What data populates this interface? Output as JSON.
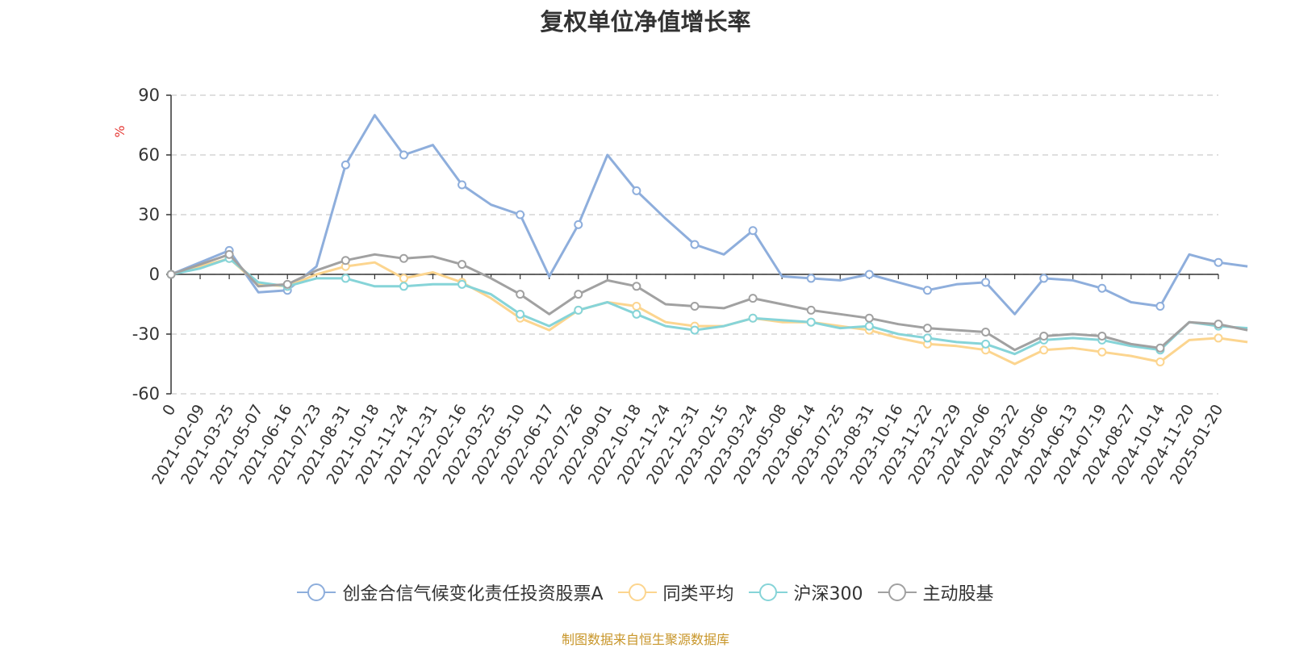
{
  "chart_data": {
    "type": "line",
    "title": "复权单位净值增长率",
    "ylabel": "%",
    "ylim": [
      -60,
      90
    ],
    "yticks": [
      "90",
      "60",
      "30",
      "0",
      "-30",
      "-60"
    ],
    "ytick_values": [
      90,
      60,
      30,
      0,
      -30,
      -60
    ],
    "grid": true,
    "legend_position": "bottom",
    "x_tick_labels": [
      "0",
      "2021-02-09",
      "2021-03-25",
      "2021-05-07",
      "2021-06-16",
      "2021-07-23",
      "2021-08-31",
      "2021-10-18",
      "2021-11-24",
      "2021-12-31",
      "2022-02-16",
      "2022-03-25",
      "2022-05-10",
      "2022-06-17",
      "2022-07-26",
      "2022-09-01",
      "2022-10-18",
      "2022-11-24",
      "2022-12-31",
      "2023-02-15",
      "2023-03-24",
      "2023-05-08",
      "2023-06-14",
      "2023-07-25",
      "2023-08-31",
      "2023-10-16",
      "2023-11-22",
      "2023-12-29",
      "2024-02-06",
      "2024-03-22",
      "2024-05-06",
      "2024-06-13",
      "2024-07-19",
      "2024-08-27",
      "2024-10-14",
      "2024-11-20",
      "2025-01-20"
    ],
    "series": [
      {
        "name": "创金合信气候变化责任投资股票A",
        "color": "#8eaedc",
        "values": [
          0,
          6,
          12,
          -9,
          -8,
          4,
          55,
          80,
          60,
          65,
          45,
          35,
          30,
          -1,
          25,
          60,
          42,
          28,
          15,
          10,
          22,
          -1,
          -2,
          -3,
          0,
          -4,
          -8,
          -5,
          -4,
          -20,
          -2,
          -3,
          -7,
          -14,
          -16,
          10,
          6,
          4
        ]
      },
      {
        "name": "同类平均",
        "color": "#fcd58f",
        "values": [
          0,
          4,
          8,
          -5,
          -6,
          0,
          4,
          6,
          -2,
          1,
          -4,
          -12,
          -22,
          -28,
          -18,
          -14,
          -16,
          -24,
          -26,
          -26,
          -22,
          -24,
          -24,
          -26,
          -28,
          -32,
          -35,
          -36,
          -38,
          -45,
          -38,
          -37,
          -39,
          -41,
          -44,
          -33,
          -32,
          -34
        ]
      },
      {
        "name": "沪深300",
        "color": "#86d4d8",
        "values": [
          0,
          3,
          8,
          -4,
          -6,
          -2,
          -2,
          -6,
          -6,
          -5,
          -5,
          -10,
          -20,
          -26,
          -18,
          -14,
          -20,
          -26,
          -28,
          -26,
          -22,
          -23,
          -24,
          -27,
          -26,
          -30,
          -32,
          -34,
          -35,
          -40,
          -33,
          -32,
          -33,
          -36,
          -38,
          -24,
          -26,
          -27
        ]
      },
      {
        "name": "主动股基",
        "color": "#a1a1a1",
        "values": [
          0,
          5,
          10,
          -6,
          -5,
          2,
          7,
          10,
          8,
          9,
          5,
          -2,
          -10,
          -20,
          -10,
          -3,
          -6,
          -15,
          -16,
          -17,
          -12,
          -15,
          -18,
          -20,
          -22,
          -25,
          -27,
          -28,
          -29,
          -38,
          -31,
          -30,
          -31,
          -35,
          -37,
          -24,
          -25,
          -28
        ]
      }
    ]
  },
  "source_note": "制图数据来自恒生聚源数据库"
}
